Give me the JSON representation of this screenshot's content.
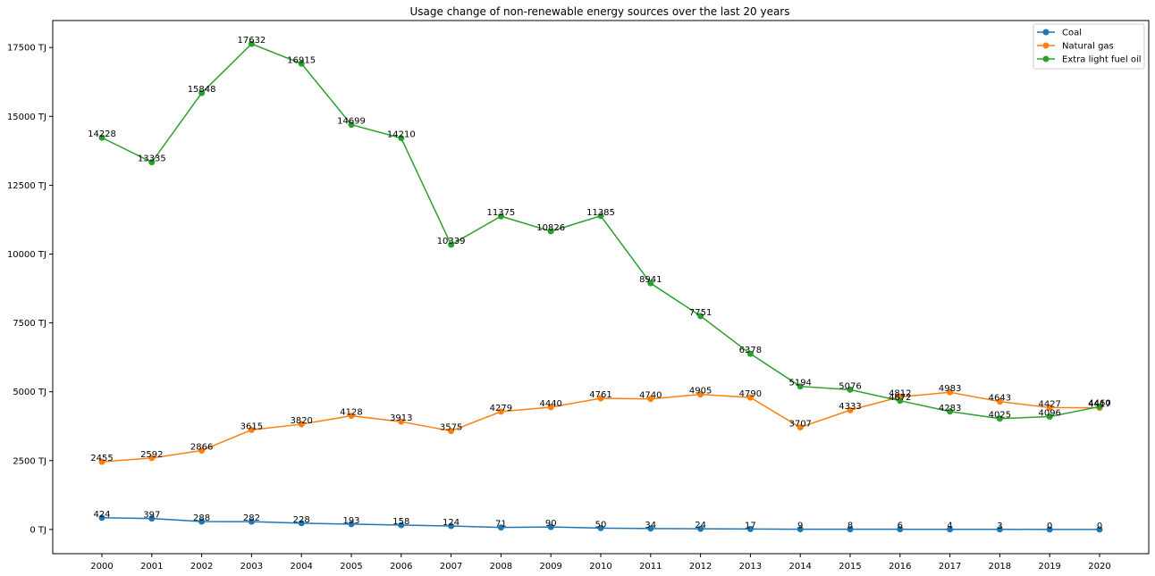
{
  "chart_data": {
    "type": "line",
    "title": "Usage change of non-renewable energy sources over the last 20 years",
    "xlabel": "",
    "ylabel": "",
    "x": [
      "2000",
      "2001",
      "2002",
      "2003",
      "2004",
      "2005",
      "2006",
      "2007",
      "2008",
      "2009",
      "2010",
      "2011",
      "2012",
      "2013",
      "2014",
      "2015",
      "2016",
      "2017",
      "2018",
      "2019",
      "2020"
    ],
    "y_unit": "TJ",
    "ylim": [
      -880,
      18480
    ],
    "yticks": [
      0,
      2500,
      5000,
      7500,
      10000,
      12500,
      15000,
      17500
    ],
    "ytick_labels": [
      "0 TJ",
      "2500 TJ",
      "5000 TJ",
      "7500 TJ",
      "10000 TJ",
      "12500 TJ",
      "15000 TJ",
      "17500 TJ"
    ],
    "grid": false,
    "legend_position": "top-right",
    "series": [
      {
        "name": "Coal",
        "color": "#1f77b4",
        "values": [
          424,
          397,
          288,
          282,
          228,
          193,
          158,
          124,
          71,
          90,
          50,
          34,
          24,
          17,
          9,
          8,
          6,
          4,
          3,
          0,
          0
        ]
      },
      {
        "name": "Natural gas",
        "color": "#ff7f0e",
        "values": [
          2455,
          2592,
          2866,
          3615,
          3820,
          4128,
          3913,
          3575,
          4279,
          4440,
          4761,
          4740,
          4905,
          4790,
          3707,
          4333,
          4812,
          4983,
          4643,
          4427,
          4417
        ]
      },
      {
        "name": "Extra light fuel oil",
        "color": "#2ca02c",
        "values": [
          14228,
          13335,
          15848,
          17632,
          16915,
          14699,
          14210,
          10339,
          11375,
          10826,
          11385,
          8941,
          7751,
          6378,
          5194,
          5076,
          4672,
          4283,
          4025,
          4096,
          4460
        ]
      }
    ]
  }
}
